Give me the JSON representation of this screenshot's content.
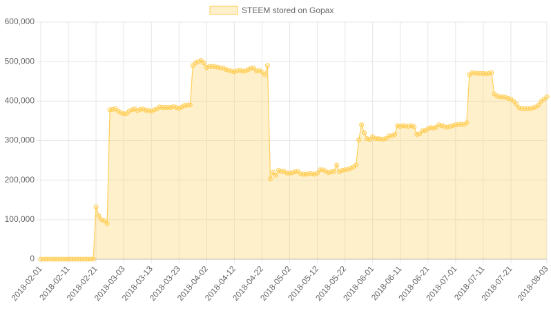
{
  "chart_data": {
    "type": "line",
    "categories": [
      "2018-02-01",
      null,
      null,
      null,
      null,
      null,
      null,
      null,
      null,
      null,
      "2018-02-11",
      null,
      null,
      null,
      null,
      null,
      null,
      null,
      null,
      null,
      "2018-02-21",
      null,
      null,
      null,
      null,
      null,
      null,
      null,
      null,
      null,
      "2018-03-03",
      null,
      null,
      null,
      null,
      null,
      null,
      null,
      null,
      null,
      "2018-03-13",
      null,
      null,
      null,
      null,
      null,
      null,
      null,
      null,
      null,
      "2018-03-23",
      null,
      null,
      null,
      null,
      null,
      null,
      null,
      null,
      null,
      "2018-04-02",
      null,
      null,
      null,
      null,
      null,
      null,
      null,
      null,
      null,
      "2018-04-12",
      null,
      null,
      null,
      null,
      null,
      null,
      null,
      null,
      null,
      "2018-04-22",
      null,
      null,
      null,
      null,
      null,
      null,
      null,
      null,
      null,
      "2018-05-02",
      null,
      null,
      null,
      null,
      null,
      null,
      null,
      null,
      null,
      "2018-05-12",
      null,
      null,
      null,
      null,
      null,
      null,
      null,
      null,
      null,
      "2018-05-22",
      null,
      null,
      null,
      null,
      null,
      null,
      null,
      null,
      null,
      "2018-06-01",
      null,
      null,
      null,
      null,
      null,
      null,
      null,
      null,
      null,
      "2018-06-11",
      null,
      null,
      null,
      null,
      null,
      null,
      null,
      null,
      null,
      "2018-06-21",
      null,
      null,
      null,
      null,
      null,
      null,
      null,
      null,
      null,
      "2018-07-01",
      null,
      null,
      null,
      null,
      null,
      null,
      null,
      null,
      null,
      "2018-07-11",
      null,
      null,
      null,
      null,
      null,
      null,
      null,
      null,
      null,
      "2018-07-21",
      null,
      null,
      null,
      null,
      null,
      null,
      null,
      null,
      null,
      null,
      null,
      null,
      "2018-08-03"
    ],
    "series": [
      {
        "name": "STEEM stored on Gopax",
        "color": "#ffce56",
        "fill": "rgba(255,206,86,0.3)",
        "values": [
          0,
          0,
          0,
          0,
          0,
          0,
          0,
          0,
          0,
          0,
          0,
          0,
          0,
          0,
          0,
          0,
          0,
          0,
          0,
          0,
          132000,
          110000,
          100000,
          97000,
          90000,
          378000,
          379000,
          381000,
          375000,
          371000,
          368000,
          368000,
          375000,
          378000,
          380000,
          376000,
          379000,
          380000,
          377000,
          377000,
          374000,
          378000,
          380000,
          385000,
          384000,
          384000,
          384000,
          384000,
          386000,
          384000,
          382000,
          385000,
          389000,
          390000,
          390000,
          490000,
          497000,
          500000,
          503000,
          497000,
          485000,
          488000,
          488000,
          487000,
          486000,
          484000,
          484000,
          480000,
          478000,
          476000,
          474000,
          477000,
          478000,
          476000,
          476000,
          480000,
          483000,
          484000,
          476000,
          478000,
          474000,
          467000,
          490000,
          203000,
          220000,
          212000,
          225000,
          222000,
          222000,
          218000,
          218000,
          219000,
          221000,
          222000,
          216000,
          215000,
          215000,
          217000,
          216000,
          215000,
          218000,
          226000,
          226000,
          223000,
          219000,
          221000,
          222000,
          238000,
          221000,
          225000,
          226000,
          227000,
          230000,
          233000,
          238000,
          302000,
          340000,
          320000,
          305000,
          303000,
          310000,
          305000,
          305000,
          304000,
          304000,
          306000,
          312000,
          312000,
          316000,
          338000,
          336000,
          338000,
          337000,
          336000,
          338000,
          335000,
          316000,
          317000,
          325000,
          326000,
          330000,
          333000,
          332000,
          334000,
          340000,
          338000,
          336000,
          334000,
          336000,
          338000,
          340000,
          341000,
          342000,
          341000,
          345000,
          467000,
          472000,
          471000,
          470000,
          470000,
          470000,
          469000,
          470000,
          472000,
          418000,
          413000,
          411000,
          411000,
          410000,
          407000,
          405000,
          400000,
          392000,
          383000,
          381000,
          381000,
          381000,
          381000,
          383000,
          385000,
          390000,
          400000,
          405000,
          411000
        ]
      }
    ],
    "ylim": [
      0,
      600000
    ],
    "yticks": [
      0,
      {
        "value": 100000,
        "label": "100,000"
      },
      {
        "value": 200000,
        "label": "200,000"
      },
      {
        "value": 300000,
        "label": "300,000"
      },
      {
        "value": 400000,
        "label": "400,000"
      },
      {
        "value": 500000,
        "label": "500,000"
      },
      {
        "value": 600000,
        "label": "600,000"
      }
    ],
    "grid": true,
    "legend": "top"
  }
}
